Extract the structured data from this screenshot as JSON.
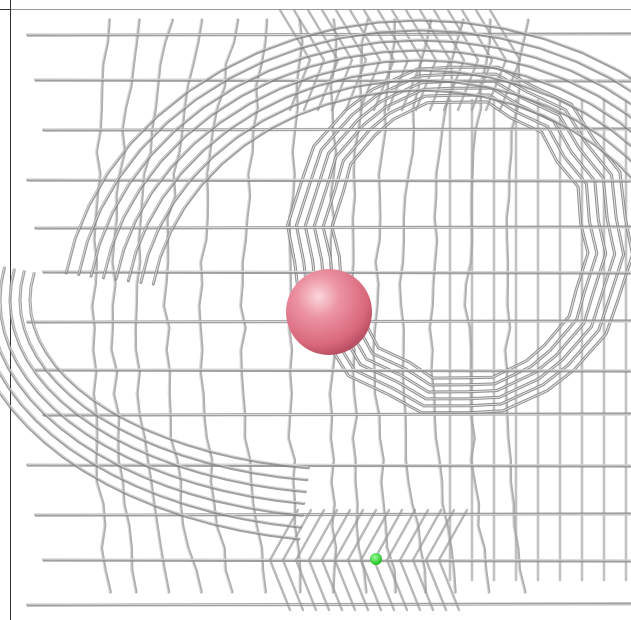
{
  "viewer": {
    "type": "molecular-density-mesh",
    "mesh_color": "#a9a9a9",
    "mesh_highlight": "#e6e6e6",
    "mesh_shadow": "#6e6e6e",
    "ion_sphere": {
      "label": "",
      "color": "#e87a8c",
      "highlight": "#f7c7cf"
    },
    "marker": {
      "color": "#22dd22"
    }
  }
}
